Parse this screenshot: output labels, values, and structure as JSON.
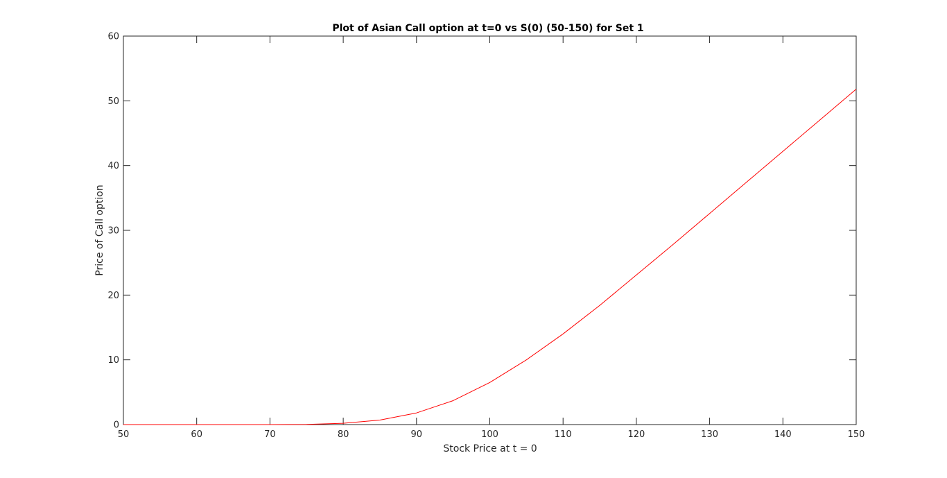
{
  "chart_data": {
    "type": "line",
    "title": "Plot of Asian Call option at t=0 vs S(0) (50-150) for Set 1",
    "xlabel": "Stock Price at t = 0",
    "ylabel": "Price of Call option",
    "xlim": [
      50,
      150
    ],
    "ylim": [
      0,
      60
    ],
    "xticks": [
      50,
      60,
      70,
      80,
      90,
      100,
      110,
      120,
      130,
      140,
      150
    ],
    "yticks": [
      0,
      10,
      20,
      30,
      40,
      50,
      60
    ],
    "grid": false,
    "series": [
      {
        "color": "#ff0000",
        "x": [
          50,
          55,
          60,
          65,
          70,
          75,
          80,
          85,
          90,
          95,
          100,
          105,
          110,
          115,
          120,
          125,
          130,
          135,
          140,
          145,
          150
        ],
        "y": [
          0,
          0,
          0,
          0,
          0,
          0.02,
          0.2,
          0.7,
          1.8,
          3.7,
          6.5,
          10,
          14,
          18.4,
          23.1,
          27.8,
          32.6,
          37.4,
          42.2,
          47,
          51.8
        ]
      }
    ]
  }
}
